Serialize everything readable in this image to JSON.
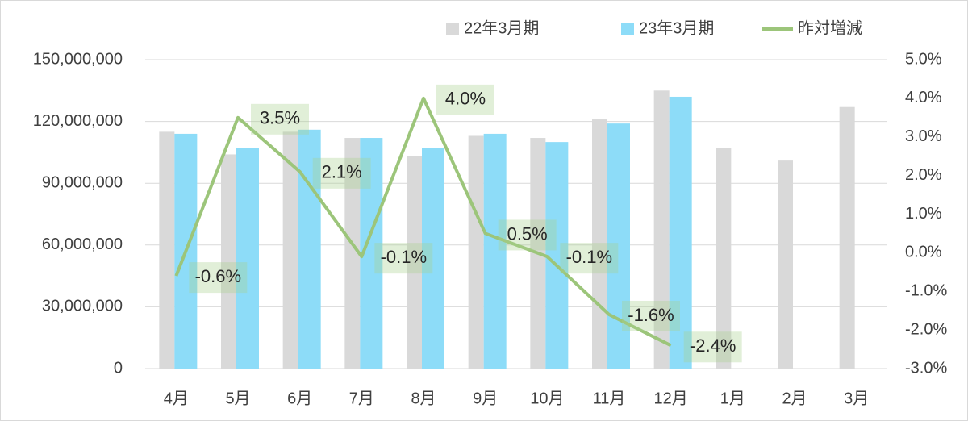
{
  "chart_data": {
    "type": "bar-line",
    "categories": [
      "4月",
      "5月",
      "6月",
      "7月",
      "8月",
      "9月",
      "10月",
      "11月",
      "12月",
      "1月",
      "2月",
      "3月"
    ],
    "series": [
      {
        "name": "22年3月期",
        "color": "#d9d9d9",
        "type": "bar",
        "values": [
          115000000,
          104000000,
          115000000,
          112000000,
          103000000,
          113000000,
          112000000,
          121000000,
          135000000,
          107000000,
          101000000,
          127000000
        ]
      },
      {
        "name": "23年3月期",
        "color": "#8ddcf8",
        "type": "bar",
        "values": [
          114000000,
          107000000,
          116000000,
          112000000,
          107000000,
          114000000,
          110000000,
          119000000,
          132000000,
          null,
          null,
          null
        ]
      },
      {
        "name": "昨対増減",
        "color": "#9cc57a",
        "type": "line",
        "axis": "y2",
        "values": [
          -0.6,
          3.5,
          2.1,
          -0.1,
          4.0,
          0.5,
          -0.1,
          -1.6,
          -2.4,
          null,
          null,
          null
        ],
        "value_labels": [
          "-0.6%",
          "3.5%",
          "2.1%",
          "-0.1%",
          "4.0%",
          "0.5%",
          "-0.1%",
          "-1.6%",
          "-2.4%",
          null,
          null,
          null
        ]
      }
    ],
    "ylim": [
      0,
      150000000
    ],
    "yticks": [
      {
        "value": 0,
        "label": "0"
      },
      {
        "value": 30000000,
        "label": "30,000,000"
      },
      {
        "value": 60000000,
        "label": "60,000,000"
      },
      {
        "value": 90000000,
        "label": "90,000,000"
      },
      {
        "value": 120000000,
        "label": "120,000,000"
      },
      {
        "value": 150000000,
        "label": "150,000,000"
      }
    ],
    "y2lim": [
      -3,
      5
    ],
    "y2ticks": [
      {
        "value": -3,
        "label": "-3.0%"
      },
      {
        "value": -2,
        "label": "-2.0%"
      },
      {
        "value": -1,
        "label": "-1.0%"
      },
      {
        "value": 0,
        "label": "0.0%"
      },
      {
        "value": 1,
        "label": "1.0%"
      },
      {
        "value": 2,
        "label": "2.0%"
      },
      {
        "value": 3,
        "label": "3.0%"
      },
      {
        "value": 4,
        "label": "4.0%"
      },
      {
        "value": 5,
        "label": "5.0%"
      }
    ],
    "grid": true,
    "legend": "top-right"
  }
}
